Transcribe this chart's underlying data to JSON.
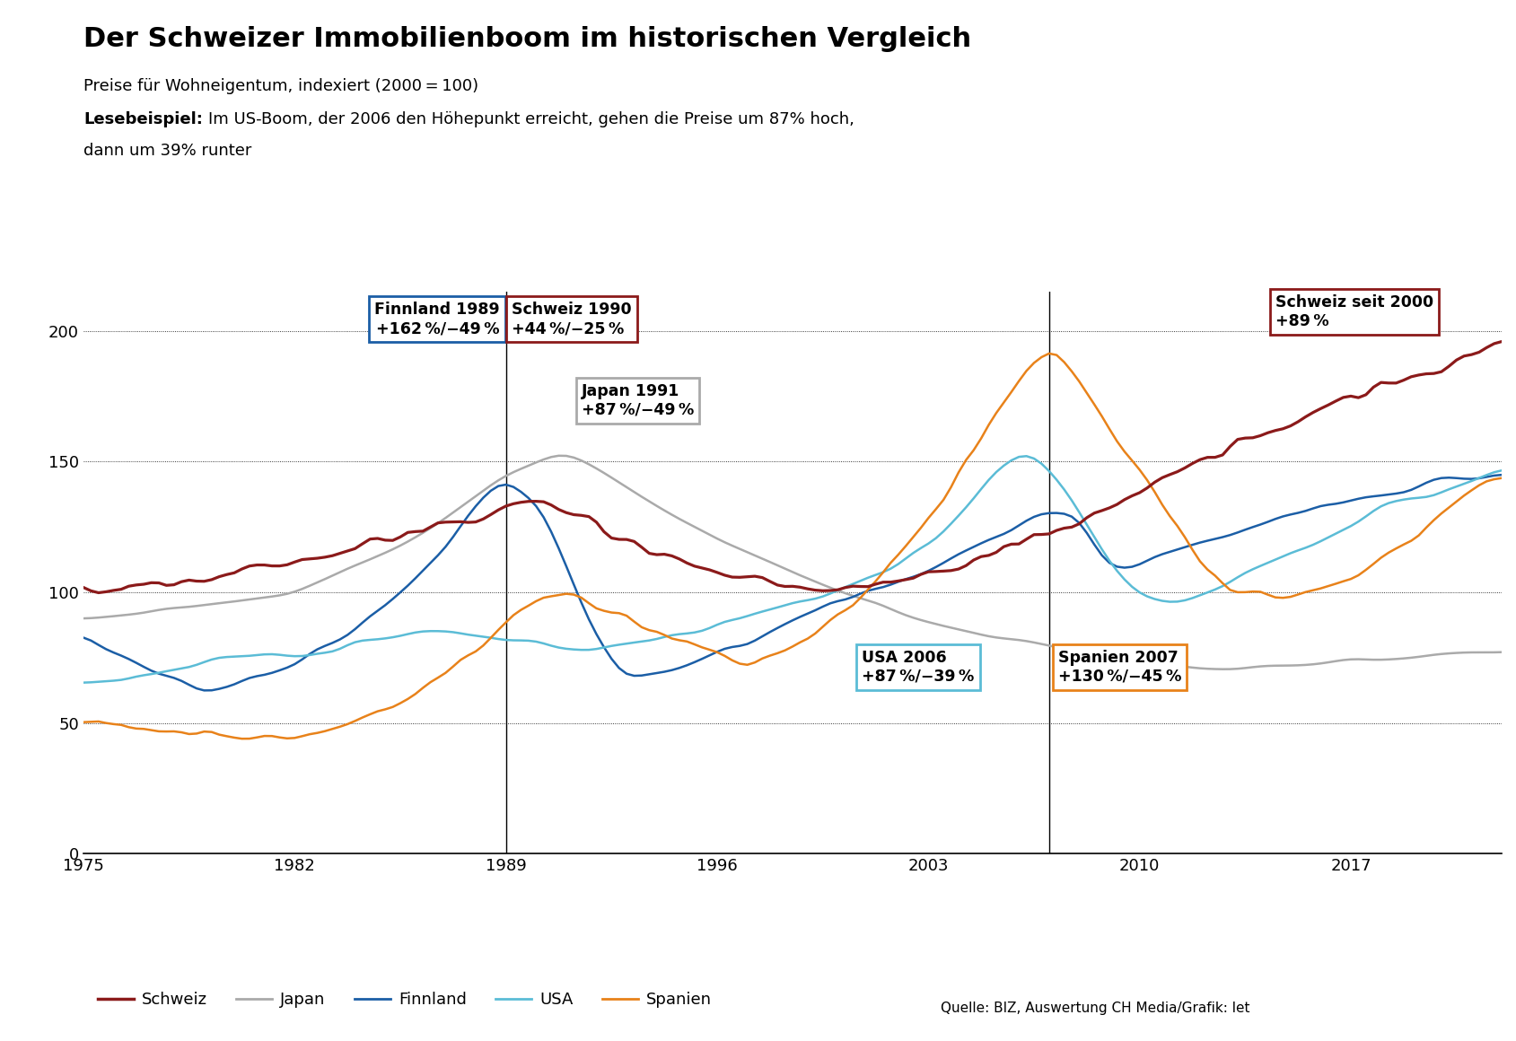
{
  "title": "Der Schweizer Immobilienboom im historischen Vergleich",
  "subtitle1": "Preise für Wohneigentum, indexiert (2000 = 100)",
  "subtitle2_bold": "Lesebeispiel:",
  "subtitle2_rest": " Im US-Boom, der 2006 den Höhepunkt erreicht, gehen die Preise um 87% hoch,\ndann um 39% runter",
  "colors": {
    "Schweiz": "#8B1A1A",
    "Japan": "#AAAAAA",
    "Finnland": "#1B5EA6",
    "USA": "#5BBCD6",
    "Spanien": "#E8821A"
  },
  "source_text": "Quelle: BIZ, Auswertung CH Media/Grafik: let"
}
